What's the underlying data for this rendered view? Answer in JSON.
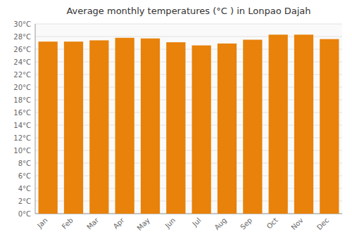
{
  "chart_data": {
    "type": "bar",
    "title": "Average monthly temperatures (°C ) in Lonpao Dajah",
    "categories": [
      "Jan",
      "Feb",
      "Mar",
      "Apr",
      "May",
      "Jun",
      "Jul",
      "Aug",
      "Sep",
      "Oct",
      "Nov",
      "Dec"
    ],
    "values": [
      27.2,
      27.2,
      27.4,
      27.8,
      27.7,
      27.1,
      26.6,
      26.9,
      27.5,
      28.3,
      28.3,
      27.6
    ],
    "color": "#E8820A",
    "ylim": [
      0,
      30
    ],
    "yticks": [
      {
        "value": 0,
        "label": "0°C"
      },
      {
        "value": 2,
        "label": "2°C"
      },
      {
        "value": 4,
        "label": "4°C"
      },
      {
        "value": 6,
        "label": "6°C"
      },
      {
        "value": 8,
        "label": "8°C"
      },
      {
        "value": 10,
        "label": "10°C"
      },
      {
        "value": 12,
        "label": "12°C"
      },
      {
        "value": 14,
        "label": "14°C"
      },
      {
        "value": 16,
        "label": "16°C"
      },
      {
        "value": 18,
        "label": "18°C"
      },
      {
        "value": 20,
        "label": "20°C"
      },
      {
        "value": 22,
        "label": "22°C"
      },
      {
        "value": 24,
        "label": "24°C"
      },
      {
        "value": 26,
        "label": "26°C"
      },
      {
        "value": 28,
        "label": "28°C"
      },
      {
        "value": 30,
        "label": "30°C"
      }
    ],
    "grid": true
  }
}
